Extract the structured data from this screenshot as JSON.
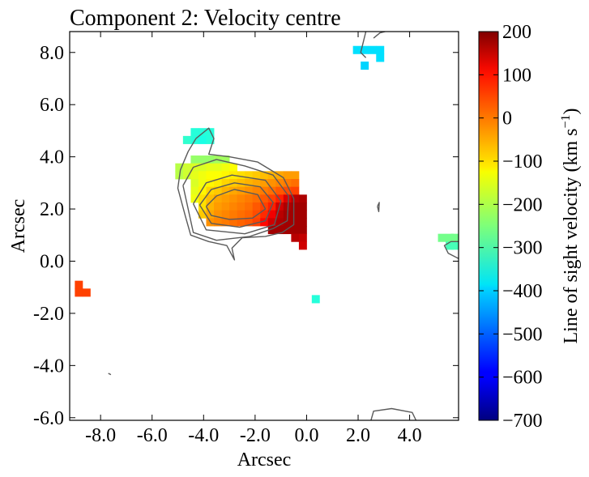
{
  "chart_data": {
    "type": "heatmap",
    "title": "Component 2: Velocity centre",
    "xlabel": "Arcsec",
    "ylabel": "Arcsec",
    "xlim": [
      -9.2,
      5.9
    ],
    "ylim": [
      -6.1,
      8.8
    ],
    "xticks": [
      -8,
      -6,
      -4,
      -2,
      0,
      2,
      4
    ],
    "xtick_labels": [
      "-8.0",
      "-6.0",
      "-4.0",
      "-2.0",
      "0.0",
      "2.0",
      "4.0"
    ],
    "yticks": [
      -6,
      -4,
      -2,
      0,
      2,
      4,
      6,
      8
    ],
    "ytick_labels": [
      "-6.0",
      "-4.0",
      "-2.0",
      "0.0",
      "2.0",
      "4.0",
      "6.0",
      "8.0"
    ],
    "pixel_size_arcsec": 0.3,
    "pixels": [
      {
        "x": 1.95,
        "y": 8.1,
        "v": -390
      },
      {
        "x": 2.25,
        "y": 8.1,
        "v": -390
      },
      {
        "x": 2.55,
        "y": 8.1,
        "v": -390
      },
      {
        "x": 2.85,
        "y": 8.1,
        "v": -390
      },
      {
        "x": 2.85,
        "y": 7.8,
        "v": -390
      },
      {
        "x": 2.25,
        "y": 7.5,
        "v": -400
      },
      {
        "x": -4.35,
        "y": 4.95,
        "v": -330
      },
      {
        "x": -4.05,
        "y": 4.95,
        "v": -330
      },
      {
        "x": -3.75,
        "y": 4.95,
        "v": -330
      },
      {
        "x": -4.35,
        "y": 4.65,
        "v": -330
      },
      {
        "x": -4.05,
        "y": 4.65,
        "v": -340
      },
      {
        "x": -3.75,
        "y": 4.65,
        "v": -330
      },
      {
        "x": -4.65,
        "y": 4.65,
        "v": -320
      },
      {
        "x": -4.35,
        "y": 3.9,
        "v": -230
      },
      {
        "x": -4.05,
        "y": 3.9,
        "v": -230
      },
      {
        "x": -3.75,
        "y": 3.9,
        "v": -230
      },
      {
        "x": -3.45,
        "y": 3.9,
        "v": -220
      },
      {
        "x": -3.15,
        "y": 3.9,
        "v": -220
      },
      {
        "x": -4.95,
        "y": 3.6,
        "v": -200
      },
      {
        "x": -4.65,
        "y": 3.6,
        "v": -180
      },
      {
        "x": -4.35,
        "y": 3.6,
        "v": -170
      },
      {
        "x": -4.05,
        "y": 3.6,
        "v": -170
      },
      {
        "x": -3.75,
        "y": 3.6,
        "v": -160
      },
      {
        "x": -3.45,
        "y": 3.6,
        "v": -160
      },
      {
        "x": -3.15,
        "y": 3.6,
        "v": -150
      },
      {
        "x": -2.85,
        "y": 3.6,
        "v": -140
      },
      {
        "x": -4.95,
        "y": 3.3,
        "v": -200
      },
      {
        "x": -4.65,
        "y": 3.3,
        "v": -180
      },
      {
        "x": -4.35,
        "y": 3.3,
        "v": -160
      },
      {
        "x": -4.05,
        "y": 3.3,
        "v": -150
      },
      {
        "x": -3.75,
        "y": 3.3,
        "v": -140
      },
      {
        "x": -3.45,
        "y": 3.3,
        "v": -140
      },
      {
        "x": -3.15,
        "y": 3.3,
        "v": -130
      },
      {
        "x": -2.85,
        "y": 3.3,
        "v": -120
      },
      {
        "x": -2.55,
        "y": 3.3,
        "v": -110
      },
      {
        "x": -2.25,
        "y": 3.3,
        "v": -100
      },
      {
        "x": -1.95,
        "y": 3.3,
        "v": -90
      },
      {
        "x": -1.65,
        "y": 3.3,
        "v": -80
      },
      {
        "x": -1.35,
        "y": 3.3,
        "v": -70
      },
      {
        "x": -1.05,
        "y": 3.3,
        "v": -60
      },
      {
        "x": -0.75,
        "y": 3.3,
        "v": -50
      },
      {
        "x": -0.45,
        "y": 3.3,
        "v": -50
      },
      {
        "x": -4.35,
        "y": 3.0,
        "v": -170
      },
      {
        "x": -4.05,
        "y": 3.0,
        "v": -150
      },
      {
        "x": -3.75,
        "y": 3.0,
        "v": -130
      },
      {
        "x": -3.45,
        "y": 3.0,
        "v": -120
      },
      {
        "x": -3.15,
        "y": 3.0,
        "v": -100
      },
      {
        "x": -2.85,
        "y": 3.0,
        "v": -90
      },
      {
        "x": -2.55,
        "y": 3.0,
        "v": -80
      },
      {
        "x": -2.25,
        "y": 3.0,
        "v": -70
      },
      {
        "x": -1.95,
        "y": 3.0,
        "v": -60
      },
      {
        "x": -1.65,
        "y": 3.0,
        "v": -50
      },
      {
        "x": -1.35,
        "y": 3.0,
        "v": -40
      },
      {
        "x": -1.05,
        "y": 3.0,
        "v": -30
      },
      {
        "x": -0.75,
        "y": 3.0,
        "v": -20
      },
      {
        "x": -0.45,
        "y": 3.0,
        "v": -10
      },
      {
        "x": -4.35,
        "y": 2.7,
        "v": -160
      },
      {
        "x": -4.05,
        "y": 2.7,
        "v": -130
      },
      {
        "x": -3.75,
        "y": 2.7,
        "v": -100
      },
      {
        "x": -3.45,
        "y": 2.7,
        "v": -90
      },
      {
        "x": -3.15,
        "y": 2.7,
        "v": -70
      },
      {
        "x": -2.85,
        "y": 2.7,
        "v": -60
      },
      {
        "x": -2.55,
        "y": 2.7,
        "v": -50
      },
      {
        "x": -2.25,
        "y": 2.7,
        "v": -40
      },
      {
        "x": -1.95,
        "y": 2.7,
        "v": -30
      },
      {
        "x": -1.65,
        "y": 2.7,
        "v": -20
      },
      {
        "x": -1.35,
        "y": 2.7,
        "v": -10
      },
      {
        "x": -1.05,
        "y": 2.7,
        "v": 10
      },
      {
        "x": -0.75,
        "y": 2.7,
        "v": 20
      },
      {
        "x": -0.45,
        "y": 2.7,
        "v": 30
      },
      {
        "x": -4.35,
        "y": 2.4,
        "v": -150
      },
      {
        "x": -4.05,
        "y": 2.4,
        "v": -110
      },
      {
        "x": -3.75,
        "y": 2.4,
        "v": -80
      },
      {
        "x": -3.45,
        "y": 2.4,
        "v": -60
      },
      {
        "x": -3.15,
        "y": 2.4,
        "v": -50
      },
      {
        "x": -2.85,
        "y": 2.4,
        "v": -40
      },
      {
        "x": -2.55,
        "y": 2.4,
        "v": -30
      },
      {
        "x": -2.25,
        "y": 2.4,
        "v": -20
      },
      {
        "x": -1.95,
        "y": 2.4,
        "v": -10
      },
      {
        "x": -1.65,
        "y": 2.4,
        "v": 10
      },
      {
        "x": -1.35,
        "y": 2.4,
        "v": 30
      },
      {
        "x": -1.05,
        "y": 2.4,
        "v": 60
      },
      {
        "x": -0.75,
        "y": 2.4,
        "v": 120
      },
      {
        "x": -0.45,
        "y": 2.4,
        "v": 150
      },
      {
        "x": -0.15,
        "y": 2.4,
        "v": 160
      },
      {
        "x": -4.05,
        "y": 2.1,
        "v": -110
      },
      {
        "x": -3.75,
        "y": 2.1,
        "v": -70
      },
      {
        "x": -3.45,
        "y": 2.1,
        "v": -50
      },
      {
        "x": -3.15,
        "y": 2.1,
        "v": -40
      },
      {
        "x": -2.85,
        "y": 2.1,
        "v": -30
      },
      {
        "x": -2.55,
        "y": 2.1,
        "v": -20
      },
      {
        "x": -2.25,
        "y": 2.1,
        "v": -10
      },
      {
        "x": -1.95,
        "y": 2.1,
        "v": 10
      },
      {
        "x": -1.65,
        "y": 2.1,
        "v": 30
      },
      {
        "x": -1.35,
        "y": 2.1,
        "v": 60
      },
      {
        "x": -1.05,
        "y": 2.1,
        "v": 130
      },
      {
        "x": -0.75,
        "y": 2.1,
        "v": 160
      },
      {
        "x": -0.45,
        "y": 2.1,
        "v": 170
      },
      {
        "x": -0.15,
        "y": 2.1,
        "v": 170
      },
      {
        "x": -4.05,
        "y": 1.8,
        "v": -90
      },
      {
        "x": -3.75,
        "y": 1.8,
        "v": -60
      },
      {
        "x": -3.45,
        "y": 1.8,
        "v": -40
      },
      {
        "x": -3.15,
        "y": 1.8,
        "v": -30
      },
      {
        "x": -2.85,
        "y": 1.8,
        "v": -20
      },
      {
        "x": -2.55,
        "y": 1.8,
        "v": -10
      },
      {
        "x": -2.25,
        "y": 1.8,
        "v": 0
      },
      {
        "x": -1.95,
        "y": 1.8,
        "v": 20
      },
      {
        "x": -1.65,
        "y": 1.8,
        "v": 50
      },
      {
        "x": -1.35,
        "y": 1.8,
        "v": 100
      },
      {
        "x": -1.05,
        "y": 1.8,
        "v": 150
      },
      {
        "x": -0.75,
        "y": 1.8,
        "v": 170
      },
      {
        "x": -0.45,
        "y": 1.8,
        "v": 170
      },
      {
        "x": -0.15,
        "y": 1.8,
        "v": 170
      },
      {
        "x": -3.75,
        "y": 1.5,
        "v": -40
      },
      {
        "x": -3.45,
        "y": 1.5,
        "v": -30
      },
      {
        "x": -3.15,
        "y": 1.5,
        "v": -20
      },
      {
        "x": -2.85,
        "y": 1.5,
        "v": -10
      },
      {
        "x": -2.55,
        "y": 1.5,
        "v": 0
      },
      {
        "x": -2.25,
        "y": 1.5,
        "v": 10
      },
      {
        "x": -1.95,
        "y": 1.5,
        "v": 30
      },
      {
        "x": -1.65,
        "y": 1.5,
        "v": 80
      },
      {
        "x": -1.35,
        "y": 1.5,
        "v": 130
      },
      {
        "x": -1.05,
        "y": 1.5,
        "v": 160
      },
      {
        "x": -0.75,
        "y": 1.5,
        "v": 170
      },
      {
        "x": -0.45,
        "y": 1.5,
        "v": 170
      },
      {
        "x": -0.15,
        "y": 1.5,
        "v": 170
      },
      {
        "x": -1.35,
        "y": 1.2,
        "v": 170
      },
      {
        "x": -1.05,
        "y": 1.2,
        "v": 170
      },
      {
        "x": -0.75,
        "y": 1.2,
        "v": 170
      },
      {
        "x": -0.45,
        "y": 1.2,
        "v": 170
      },
      {
        "x": -0.15,
        "y": 1.2,
        "v": 170
      },
      {
        "x": -0.45,
        "y": 0.9,
        "v": 150
      },
      {
        "x": -0.15,
        "y": 0.9,
        "v": 140
      },
      {
        "x": -0.15,
        "y": 0.6,
        "v": 130
      },
      {
        "x": -8.85,
        "y": -0.9,
        "v": 30
      },
      {
        "x": -8.85,
        "y": -1.2,
        "v": 30
      },
      {
        "x": -8.55,
        "y": -1.2,
        "v": 30
      },
      {
        "x": 0.35,
        "y": -1.45,
        "v": -330
      },
      {
        "x": 5.25,
        "y": 0.9,
        "v": -260
      },
      {
        "x": 5.55,
        "y": 0.9,
        "v": -260
      },
      {
        "x": 5.75,
        "y": 0.9,
        "v": -260
      },
      {
        "x": 5.55,
        "y": 0.6,
        "v": -300
      },
      {
        "x": 5.75,
        "y": 0.6,
        "v": -300
      }
    ],
    "contours": [
      [
        [
          -3.9,
          2.1
        ],
        [
          -3.5,
          2.5
        ],
        [
          -2.8,
          2.75
        ],
        [
          -1.9,
          2.55
        ],
        [
          -1.6,
          2.0
        ],
        [
          -2.1,
          1.65
        ],
        [
          -3.0,
          1.6
        ],
        [
          -3.7,
          1.75
        ],
        [
          -3.9,
          2.1
        ]
      ],
      [
        [
          -4.15,
          2.15
        ],
        [
          -3.7,
          2.75
        ],
        [
          -2.8,
          3.0
        ],
        [
          -1.8,
          2.85
        ],
        [
          -1.3,
          2.25
        ],
        [
          -1.6,
          1.55
        ],
        [
          -2.6,
          1.3
        ],
        [
          -3.7,
          1.45
        ],
        [
          -4.15,
          2.15
        ]
      ],
      [
        [
          -4.4,
          2.2
        ],
        [
          -3.9,
          3.0
        ],
        [
          -2.9,
          3.3
        ],
        [
          -1.6,
          3.1
        ],
        [
          -1.0,
          2.3
        ],
        [
          -1.25,
          1.4
        ],
        [
          -2.4,
          1.05
        ],
        [
          -3.9,
          1.2
        ],
        [
          -4.4,
          2.2
        ]
      ],
      [
        [
          -4.8,
          2.9
        ],
        [
          -4.4,
          3.6
        ],
        [
          -3.5,
          3.9
        ],
        [
          -2.4,
          3.65
        ],
        [
          -1.3,
          3.3
        ],
        [
          -0.7,
          2.5
        ],
        [
          -0.75,
          1.55
        ],
        [
          -1.3,
          1.25
        ],
        [
          -2.2,
          0.95
        ],
        [
          -3.5,
          0.8
        ],
        [
          -4.4,
          1.1
        ],
        [
          -4.8,
          2.9
        ]
      ],
      [
        [
          -4.3,
          4.7
        ],
        [
          -4.6,
          4.2
        ],
        [
          -4.9,
          3.5
        ],
        [
          -5.0,
          2.8
        ],
        [
          -4.7,
          1.7
        ],
        [
          -4.5,
          1.0
        ],
        [
          -3.8,
          0.75
        ],
        [
          -3.1,
          0.6
        ],
        [
          -2.8,
          0.05
        ],
        [
          -2.9,
          0.5
        ],
        [
          -2.5,
          0.9
        ],
        [
          -1.6,
          0.95
        ],
        [
          -0.95,
          1.1
        ],
        [
          -0.5,
          1.4
        ],
        [
          -0.5,
          2.4
        ],
        [
          -0.9,
          3.2
        ],
        [
          -1.9,
          3.8
        ],
        [
          -3.0,
          4.0
        ],
        [
          -3.8,
          4.1
        ],
        [
          -3.6,
          4.7
        ],
        [
          -3.8,
          5.1
        ],
        [
          -4.3,
          4.7
        ]
      ],
      [
        [
          2.3,
          8.8
        ],
        [
          2.2,
          8.4
        ],
        [
          2.1,
          8.0
        ],
        [
          2.3,
          7.8
        ]
      ],
      [
        [
          2.6,
          8.55
        ],
        [
          2.85,
          8.75
        ],
        [
          3.05,
          8.8
        ]
      ],
      [
        [
          2.75,
          2.1
        ],
        [
          2.8,
          1.9
        ],
        [
          2.82,
          2.25
        ],
        [
          2.75,
          2.1
        ]
      ],
      [
        [
          5.9,
          0.1
        ],
        [
          5.5,
          0.3
        ],
        [
          5.35,
          0.6
        ],
        [
          5.6,
          0.75
        ],
        [
          5.9,
          0.75
        ]
      ],
      [
        [
          2.5,
          -6.1
        ],
        [
          2.6,
          -5.75
        ],
        [
          3.3,
          -5.65
        ],
        [
          4.1,
          -5.8
        ],
        [
          4.25,
          -6.1
        ]
      ],
      [
        [
          -7.7,
          -4.3
        ],
        [
          -7.6,
          -4.35
        ]
      ]
    ],
    "colorbar": {
      "label": "Line of sight velocity (km s",
      "label_exp": "−1",
      "label_close": ")",
      "vmin": -700,
      "vmax": 200,
      "ticks": [
        200,
        100,
        0,
        -100,
        -200,
        -300,
        -400,
        -500,
        -600,
        -700
      ],
      "tick_labels": [
        "200",
        "100",
        "0",
        "−100",
        "−200",
        "−300",
        "−400",
        "−500",
        "−600",
        "−700"
      ],
      "colormap": "jet"
    }
  }
}
